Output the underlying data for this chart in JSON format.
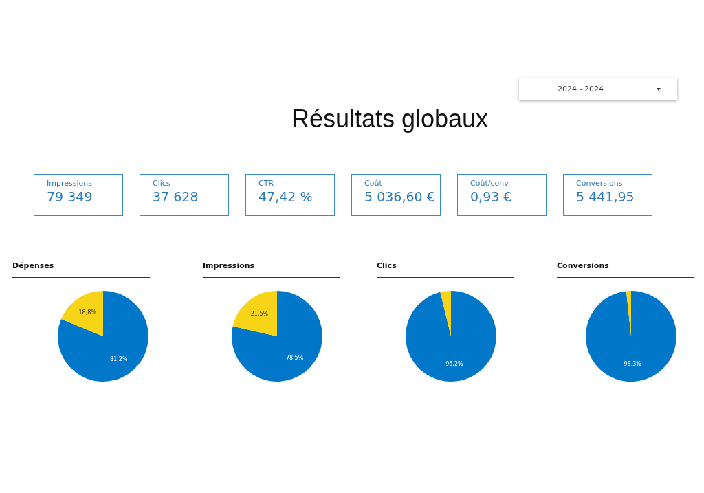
{
  "chart_data": [
    {
      "type": "other",
      "title": "Résultats globaux",
      "annotations": [
        "2024 - 2024",
        "Impressions",
        "79 349",
        "Clics",
        "37 628",
        "CTR",
        "47,42 %",
        "Coût",
        "5 036,60 €",
        "Coût/conv.",
        "0,93 €",
        "Conversions",
        "5 441,95"
      ]
    },
    {
      "type": "pie",
      "title": "Dépenses",
      "categories": [
        null,
        null
      ],
      "values": [
        81.2,
        18.8
      ],
      "colors": [
        "#0077c8",
        "#f7d417"
      ],
      "value_labels": [
        "81,2%",
        "18,8%"
      ],
      "legend": false
    },
    {
      "type": "pie",
      "title": "Impressions",
      "categories": [
        null,
        null
      ],
      "values": [
        78.5,
        21.5
      ],
      "colors": [
        "#0077c8",
        "#f7d417"
      ],
      "value_labels": [
        "78,5%",
        "21,5%"
      ],
      "legend": false
    },
    {
      "type": "pie",
      "title": "Clics",
      "categories": [
        null,
        null
      ],
      "values": [
        96.2,
        3.8
      ],
      "colors": [
        "#0077c8",
        "#f7d417"
      ],
      "value_labels": [
        "96,2%",
        null
      ],
      "legend": false
    },
    {
      "type": "pie",
      "title": "Conversions",
      "categories": [
        null,
        null
      ],
      "values": [
        98.3,
        1.7
      ],
      "colors": [
        "#0077c8",
        "#f7d417"
      ],
      "value_labels": [
        "98,3%",
        null
      ],
      "legend": false
    }
  ]
}
